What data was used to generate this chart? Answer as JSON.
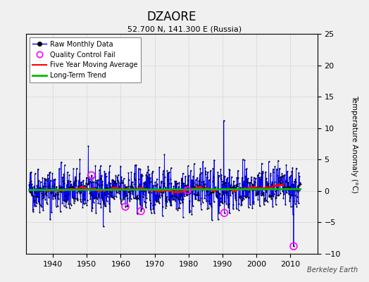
{
  "title": "DZAORE",
  "subtitle": "52.700 N, 141.300 E (Russia)",
  "ylabel": "Temperature Anomaly (°C)",
  "watermark": "Berkeley Earth",
  "xlim": [
    1932,
    2018
  ],
  "ylim": [
    -10,
    25
  ],
  "yticks": [
    -10,
    -5,
    0,
    5,
    10,
    15,
    20,
    25
  ],
  "xticks": [
    1940,
    1950,
    1960,
    1970,
    1980,
    1990,
    2000,
    2010
  ],
  "raw_color": "#0000ff",
  "dot_color": "#000000",
  "qc_color": "#ff00ff",
  "mavg_color": "#ff0000",
  "trend_color": "#00bb00",
  "background_color": "#f0f0f0",
  "grid_color": "#cccccc",
  "seed": 42,
  "n_points": 960,
  "start_year": 1933.0,
  "end_year": 2013.0,
  "noise_std": 1.8,
  "trend_slope": 0.00015,
  "trend_intercept": 0.15,
  "qc_fail_indices": [
    220,
    340,
    395,
    560,
    690,
    935
  ],
  "qc_fail_values": [
    2.5,
    -2.5,
    -3.2,
    0.1,
    -3.5,
    -8.8
  ],
  "spike_index": 688,
  "spike_value": 11.2
}
